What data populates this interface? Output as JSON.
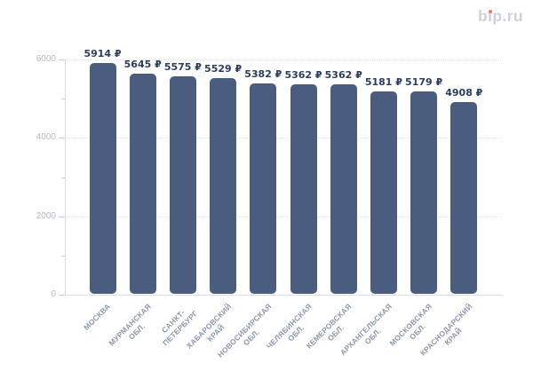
{
  "logo": {
    "text": "bip.ru",
    "parts": [
      "b",
      "ı",
      "p.ru"
    ],
    "text_color": "#cdd1de",
    "dot_color": "#f0776b"
  },
  "chart_data": {
    "type": "bar",
    "title": "",
    "xlabel": "",
    "ylabel": "",
    "categories": [
      "МОСКВА",
      "МУРМАНСКАЯ ОБЛ.",
      "САНКТ-ПЕТЕРБУРГ",
      "ХАБАРОВСКИЙ КРАЙ",
      "НОВОСИБИРСКАЯ ОБЛ.",
      "ЧЕЛЯБИНСКАЯ ОБЛ.",
      "КЕМЕРОВСКАЯ ОБЛ.",
      "АРХАНГЕЛЬСКАЯ ОБЛ.",
      "МОСКОВСКАЯ ОБЛ.",
      "КРАСНОДАРСКИЙ КРАЙ"
    ],
    "category_lines": [
      [
        "МОСКВА"
      ],
      [
        "МУРМАНСКАЯ",
        "ОБЛ."
      ],
      [
        "САНКТ-",
        "ПЕТЕРБУРГ"
      ],
      [
        "ХАБАРОВСКИЙ",
        "КРАЙ"
      ],
      [
        "НОВОСИБИРСКАЯ",
        "ОБЛ."
      ],
      [
        "ЧЕЛЯБИНСКАЯ",
        "ОБЛ."
      ],
      [
        "КЕМЕРОВСКАЯ",
        "ОБЛ."
      ],
      [
        "АРХАНГЕЛЬСКАЯ",
        "ОБЛ."
      ],
      [
        "МОСКОВСКАЯ",
        "ОБЛ."
      ],
      [
        "КРАСНОДАРСКИЙ",
        "КРАЙ"
      ]
    ],
    "values": [
      5914,
      5645,
      5575,
      5529,
      5382,
      5362,
      5362,
      5181,
      5179,
      4908
    ],
    "value_labels": [
      "5914 ₽",
      "5645 ₽",
      "5575 ₽",
      "5529 ₽",
      "5382 ₽",
      "5362 ₽",
      "5362 ₽",
      "5181 ₽",
      "5179 ₽",
      "4908 ₽"
    ],
    "currency_suffix": " ₽",
    "ylim": [
      0,
      6000
    ],
    "y_ticks": [
      0,
      2000,
      4000,
      6000
    ],
    "y_tick_labels": [
      "0",
      "2000",
      "4000",
      "6000"
    ],
    "y_minor_ticks": [
      1000,
      3000,
      5000
    ],
    "grid": "horizontal dotted at labeled ticks above 0",
    "legend": false,
    "bar_color": "#4a5d7e",
    "value_label_color": "#2c3e5c",
    "x_label_color": "#8d98aa",
    "y_label_color": "#b4bbc7",
    "gridline_color": "#e0e4ea",
    "axis_color": "#d8dce3",
    "background_color": "#ffffff"
  }
}
